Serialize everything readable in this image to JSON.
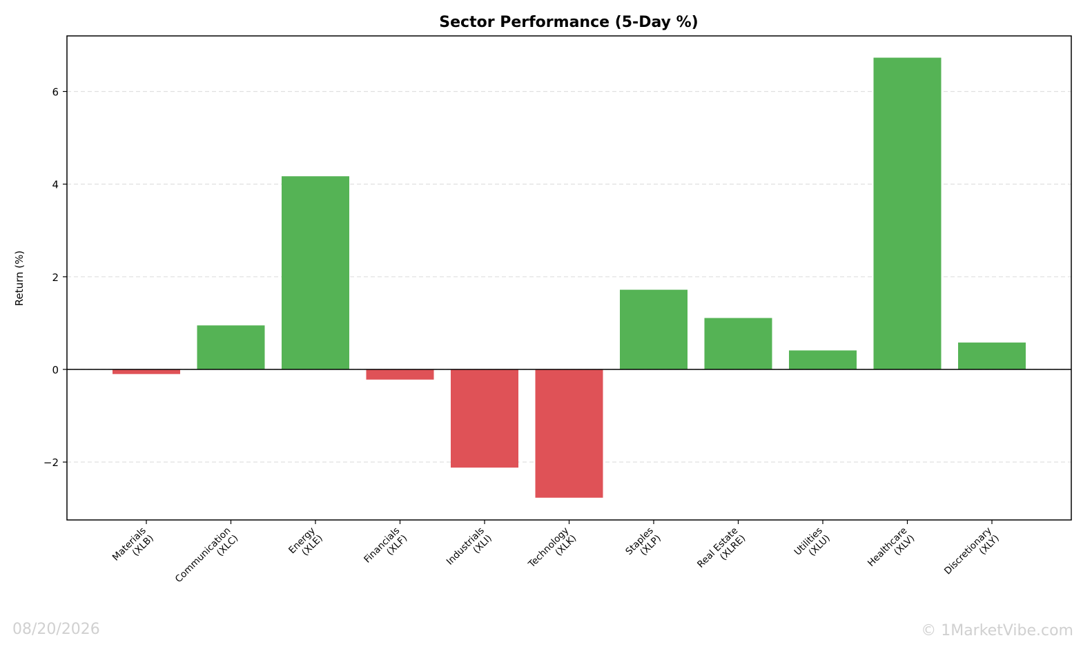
{
  "chart_data": {
    "type": "bar",
    "title": "Sector Performance (5-Day %)",
    "ylabel": "Return (%)",
    "ylim": [
      -3.25,
      7.2
    ],
    "yticks": [
      -2,
      0,
      2,
      4,
      6
    ],
    "ytick_labels": [
      "−2",
      "0",
      "2",
      "4",
      "6"
    ],
    "grid": "y-dashed",
    "categories": [
      [
        "Materials",
        "(XLB)"
      ],
      [
        "Communication",
        "(XLC)"
      ],
      [
        "Energy",
        "(XLE)"
      ],
      [
        "Financials",
        "(XLF)"
      ],
      [
        "Industrials",
        "(XLI)"
      ],
      [
        "Technology",
        "(XLK)"
      ],
      [
        "Staples",
        "(XLP)"
      ],
      [
        "Real Estate",
        "(XLRE)"
      ],
      [
        "Utilities",
        "(XLU)"
      ],
      [
        "Healthcare",
        "(XLV)"
      ],
      [
        "Discretionary",
        "(XLY)"
      ]
    ],
    "values": [
      -0.1,
      0.95,
      4.17,
      -0.22,
      -2.12,
      -2.77,
      1.72,
      1.11,
      0.41,
      6.73,
      0.58
    ],
    "colors": {
      "positive": "#55b355",
      "negative": "#df5257"
    }
  },
  "footer": {
    "date": "08/20/2026",
    "copyright": "© 1MarketVibe.com"
  }
}
